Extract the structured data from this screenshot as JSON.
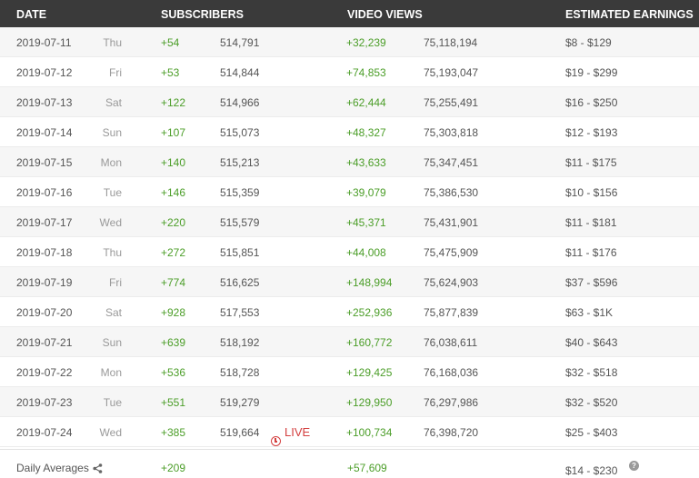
{
  "header": {
    "date": "DATE",
    "subscribers": "SUBSCRIBERS",
    "video_views": "VIDEO VIEWS",
    "estimated_earnings": "ESTIMATED EARNINGS"
  },
  "rows": [
    {
      "date": "2019-07-11",
      "day": "Thu",
      "sub_gain": "+54",
      "sub_total": "514,791",
      "view_gain": "+32,239",
      "view_total": "75,118,194",
      "earnings": "$8  -  $129"
    },
    {
      "date": "2019-07-12",
      "day": "Fri",
      "sub_gain": "+53",
      "sub_total": "514,844",
      "view_gain": "+74,853",
      "view_total": "75,193,047",
      "earnings": "$19  -  $299"
    },
    {
      "date": "2019-07-13",
      "day": "Sat",
      "sub_gain": "+122",
      "sub_total": "514,966",
      "view_gain": "+62,444",
      "view_total": "75,255,491",
      "earnings": "$16  -  $250"
    },
    {
      "date": "2019-07-14",
      "day": "Sun",
      "sub_gain": "+107",
      "sub_total": "515,073",
      "view_gain": "+48,327",
      "view_total": "75,303,818",
      "earnings": "$12  -  $193"
    },
    {
      "date": "2019-07-15",
      "day": "Mon",
      "sub_gain": "+140",
      "sub_total": "515,213",
      "view_gain": "+43,633",
      "view_total": "75,347,451",
      "earnings": "$11  -  $175"
    },
    {
      "date": "2019-07-16",
      "day": "Tue",
      "sub_gain": "+146",
      "sub_total": "515,359",
      "view_gain": "+39,079",
      "view_total": "75,386,530",
      "earnings": "$10  -  $156"
    },
    {
      "date": "2019-07-17",
      "day": "Wed",
      "sub_gain": "+220",
      "sub_total": "515,579",
      "view_gain": "+45,371",
      "view_total": "75,431,901",
      "earnings": "$11  -  $181"
    },
    {
      "date": "2019-07-18",
      "day": "Thu",
      "sub_gain": "+272",
      "sub_total": "515,851",
      "view_gain": "+44,008",
      "view_total": "75,475,909",
      "earnings": "$11  -  $176"
    },
    {
      "date": "2019-07-19",
      "day": "Fri",
      "sub_gain": "+774",
      "sub_total": "516,625",
      "view_gain": "+148,994",
      "view_total": "75,624,903",
      "earnings": "$37  -  $596"
    },
    {
      "date": "2019-07-20",
      "day": "Sat",
      "sub_gain": "+928",
      "sub_total": "517,553",
      "view_gain": "+252,936",
      "view_total": "75,877,839",
      "earnings": "$63  -  $1K"
    },
    {
      "date": "2019-07-21",
      "day": "Sun",
      "sub_gain": "+639",
      "sub_total": "518,192",
      "view_gain": "+160,772",
      "view_total": "76,038,611",
      "earnings": "$40  -  $643"
    },
    {
      "date": "2019-07-22",
      "day": "Mon",
      "sub_gain": "+536",
      "sub_total": "518,728",
      "view_gain": "+129,425",
      "view_total": "76,168,036",
      "earnings": "$32  -  $518"
    },
    {
      "date": "2019-07-23",
      "day": "Tue",
      "sub_gain": "+551",
      "sub_total": "519,279",
      "view_gain": "+129,950",
      "view_total": "76,297,986",
      "earnings": "$32  -  $520"
    },
    {
      "date": "2019-07-24",
      "day": "Wed",
      "sub_gain": "+385",
      "sub_total": "519,664",
      "live": "LIVE",
      "view_gain": "+100,734",
      "view_total": "76,398,720",
      "earnings": "$25  -  $403"
    }
  ],
  "footer": {
    "label": "Daily Averages",
    "share_icon": "share-icon",
    "sub_avg": "+209",
    "view_avg": "+57,609",
    "earnings_avg": "$14  -  $230",
    "help": "?"
  },
  "colors": {
    "header_bg": "#3a3a3a",
    "gain_green": "#4c9e29",
    "live_red": "#d44040"
  }
}
